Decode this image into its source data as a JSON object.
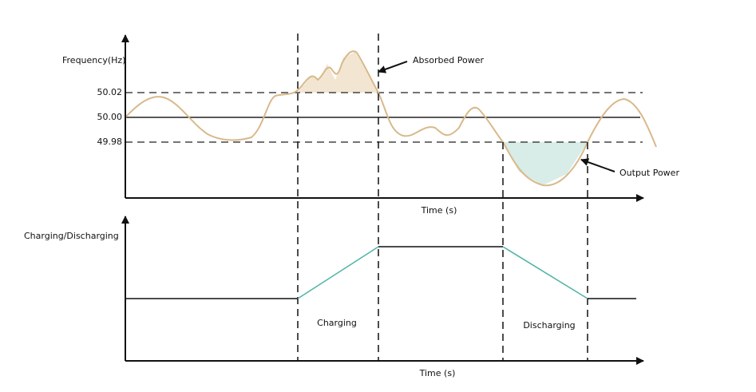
{
  "top_panel": {
    "y_axis_label": "Frequency(Hz)",
    "levels": [
      "50.02",
      "50.00",
      "49.98"
    ],
    "x_axis_label": "Time (s)",
    "annotations": {
      "absorbed": "Absorbed Power",
      "output": "Output Power"
    }
  },
  "bottom_panel": {
    "y_axis_label": "Charging/Discharging",
    "x_axis_label": "Time (s)",
    "phases": {
      "charging": "Charging",
      "discharging": "Discharging"
    }
  }
}
